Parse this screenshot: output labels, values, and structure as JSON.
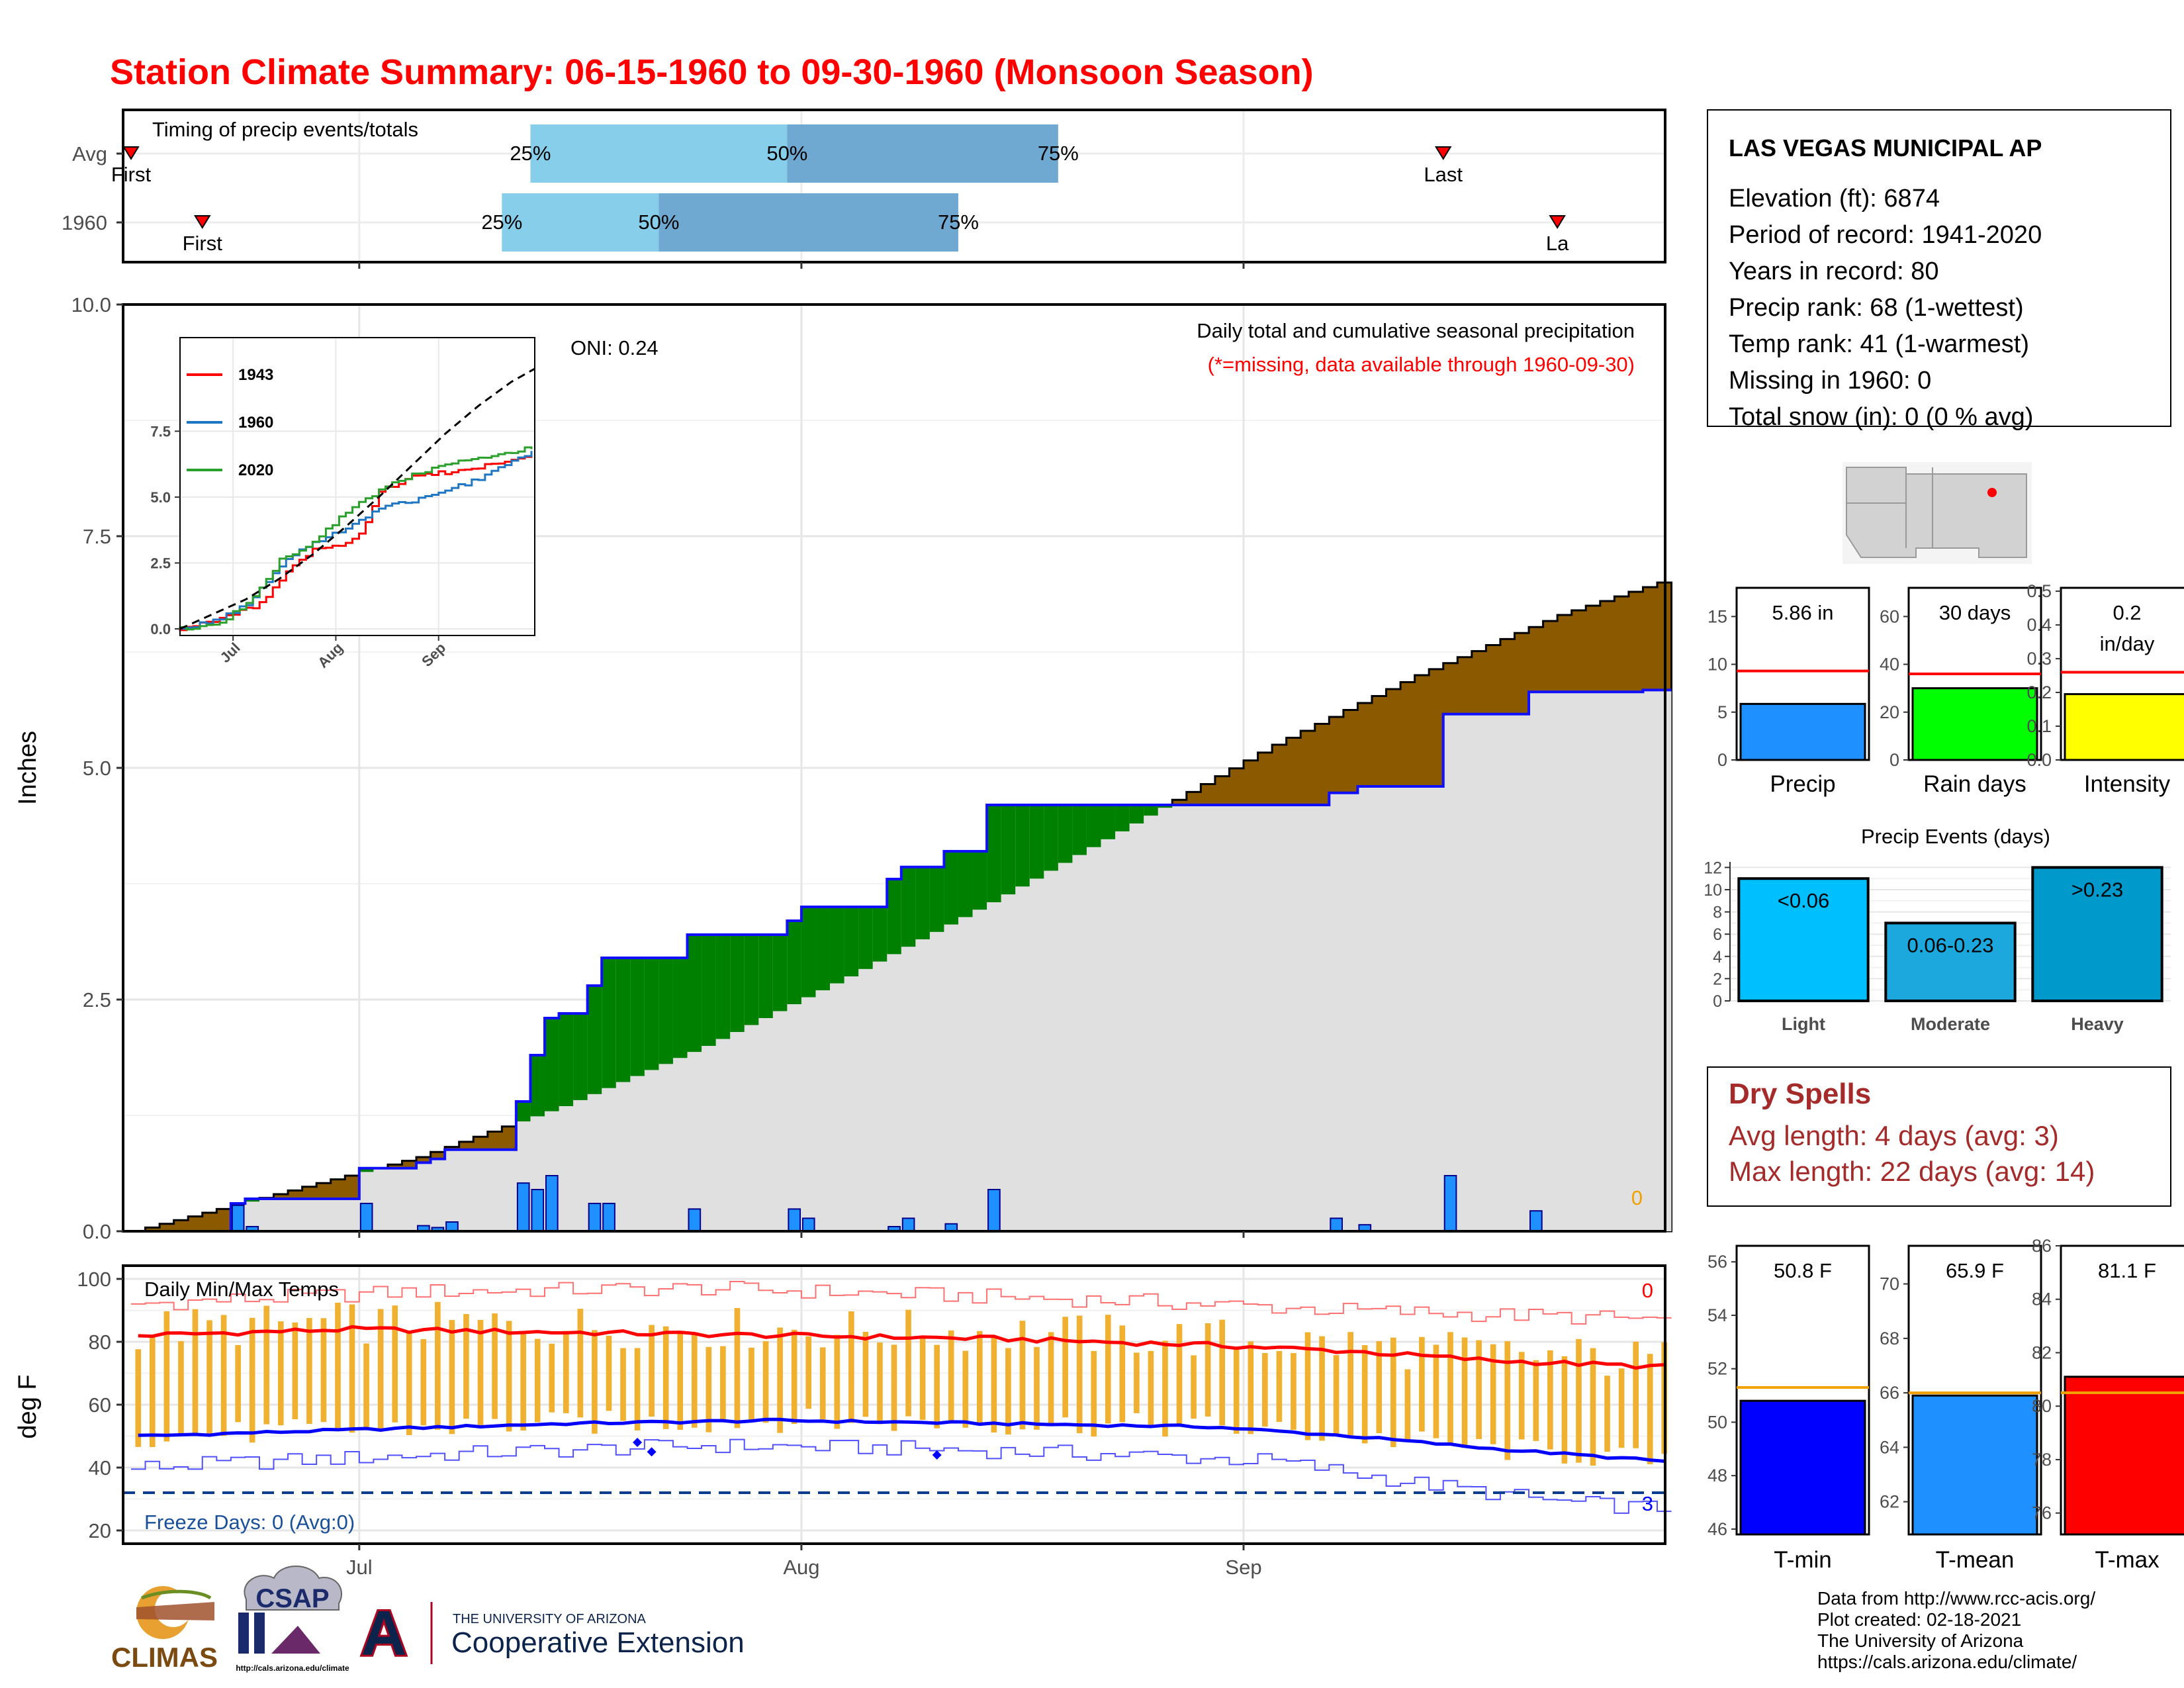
{
  "title": "Station Climate Summary: 06-15-1960 to 09-30-1960 (Monsoon Season)",
  "colors": {
    "title": "#ff0000",
    "brown": "#8b5a00",
    "green": "#008000",
    "blue_line": "#1010ff",
    "precip_bar": "#1e90ff",
    "light_fill": "#e0e0e0",
    "range_light": "#87ceeb",
    "range_dark": "#6fa8d0",
    "temp_bar": "#f0b030",
    "tmax_line": "#ff0000",
    "tmin_line": "#0000ff",
    "dry_spell_text": "#a52a2a"
  },
  "timing": {
    "label": "Timing of precip events/totals",
    "rows": [
      {
        "name": "Avg",
        "first_label": "First",
        "last_label": "Last",
        "p25_label": "25%",
        "p50_label": "50%",
        "p75_label": "75%",
        "first": 0,
        "p25": 28,
        "p50": 46,
        "p75": 65,
        "last": 92
      },
      {
        "name": "1960",
        "first_label": "First",
        "last_label": "La",
        "p25_label": "25%",
        "p50_label": "50%",
        "p75_label": "75%",
        "first": 5,
        "p25": 26,
        "p50": 37,
        "p75": 58,
        "last": 100
      }
    ]
  },
  "months": [
    "Jul",
    "Aug",
    "Sep"
  ],
  "month_days": [
    16,
    47,
    78
  ],
  "chart_data": [
    {
      "type": "area",
      "title": "Daily total and cumulative seasonal precipitation",
      "subtitle": "(*=missing, data available through 1960-09-30)",
      "annotation": "ONI: 0.24",
      "corner_count": "0",
      "ylabel": "Inches",
      "ylim": [
        0,
        10
      ],
      "yticks": [
        "0.0",
        "2.5",
        "5.0",
        "7.5",
        "10.0"
      ],
      "x": "day of season (0 = 06-15, 107 = 09-30)",
      "avg_cumulative_breakpoints": [
        [
          0,
          0.0
        ],
        [
          10,
          0.4
        ],
        [
          20,
          0.8
        ],
        [
          30,
          1.35
        ],
        [
          40,
          2.0
        ],
        [
          50,
          2.75
        ],
        [
          60,
          3.55
        ],
        [
          70,
          4.4
        ],
        [
          80,
          5.25
        ],
        [
          90,
          6.0
        ],
        [
          100,
          6.65
        ],
        [
          107,
          7.0
        ]
      ],
      "year_cumulative_steps": [
        [
          7,
          0.3
        ],
        [
          8,
          0.35
        ],
        [
          16,
          0.68
        ],
        [
          20,
          0.74
        ],
        [
          21,
          0.78
        ],
        [
          22,
          0.88
        ],
        [
          27,
          1.4
        ],
        [
          28,
          1.9
        ],
        [
          29,
          2.3
        ],
        [
          30,
          2.35
        ],
        [
          32,
          2.65
        ],
        [
          33,
          2.95
        ],
        [
          39,
          3.2
        ],
        [
          46,
          3.35
        ],
        [
          47,
          3.5
        ],
        [
          53,
          3.8
        ],
        [
          54,
          3.93
        ],
        [
          57,
          4.1
        ],
        [
          60,
          4.6
        ],
        [
          84,
          4.73
        ],
        [
          86,
          4.8
        ],
        [
          92,
          5.58
        ],
        [
          98,
          5.82
        ],
        [
          106,
          5.84
        ]
      ],
      "daily_precip": [
        [
          7,
          0.28
        ],
        [
          8,
          0.05
        ],
        [
          16,
          0.3
        ],
        [
          20,
          0.06
        ],
        [
          21,
          0.04
        ],
        [
          22,
          0.1
        ],
        [
          27,
          0.52
        ],
        [
          28,
          0.45
        ],
        [
          29,
          0.6
        ],
        [
          32,
          0.3
        ],
        [
          33,
          0.3
        ],
        [
          39,
          0.24
        ],
        [
          46,
          0.24
        ],
        [
          47,
          0.14
        ],
        [
          53,
          0.05
        ],
        [
          54,
          0.14
        ],
        [
          57,
          0.08
        ],
        [
          60,
          0.45
        ],
        [
          84,
          0.14
        ],
        [
          86,
          0.07
        ],
        [
          92,
          0.6
        ],
        [
          98,
          0.22
        ]
      ]
    },
    {
      "type": "line",
      "title": "Daily Min/Max Temps",
      "ylabel": "deg F",
      "ylim": [
        20,
        100
      ],
      "yticks": [
        "20",
        "40",
        "60",
        "80",
        "100"
      ],
      "freeze_label": "Freeze Days: 0 (Avg:0)",
      "freeze_line": 32,
      "count_top": "0",
      "count_bottom": "3",
      "avg_tmax_breakpoints": [
        [
          0,
          82
        ],
        [
          15,
          84
        ],
        [
          30,
          83
        ],
        [
          45,
          82
        ],
        [
          60,
          81
        ],
        [
          75,
          79
        ],
        [
          85,
          77
        ],
        [
          95,
          74
        ],
        [
          107,
          72
        ]
      ],
      "avg_tmin_breakpoints": [
        [
          0,
          50
        ],
        [
          15,
          52
        ],
        [
          30,
          54
        ],
        [
          45,
          55
        ],
        [
          60,
          54
        ],
        [
          75,
          53
        ],
        [
          85,
          50
        ],
        [
          95,
          46
        ],
        [
          107,
          42
        ]
      ],
      "rec_high_breakpoints": [
        [
          0,
          92
        ],
        [
          20,
          96
        ],
        [
          40,
          97
        ],
        [
          55,
          95
        ],
        [
          70,
          93
        ],
        [
          85,
          90
        ],
        [
          100,
          88
        ],
        [
          107,
          87
        ]
      ],
      "rec_low_breakpoints": [
        [
          0,
          40
        ],
        [
          20,
          44
        ],
        [
          40,
          47
        ],
        [
          55,
          46
        ],
        [
          70,
          44
        ],
        [
          80,
          42
        ],
        [
          90,
          35
        ],
        [
          100,
          29
        ],
        [
          107,
          27
        ]
      ],
      "below_avg_tmin_days": [
        [
          35,
          48
        ],
        [
          36,
          45
        ],
        [
          56,
          44
        ]
      ]
    },
    {
      "type": "bar",
      "name": "season totals",
      "panels": [
        {
          "category": "Precip",
          "value_label": "5.86 in",
          "value": 5.86,
          "avg": 9.3,
          "ylim": [
            0,
            18
          ],
          "yticks": [
            "0",
            "5",
            "10",
            "15"
          ],
          "tick_values": [
            0,
            5,
            10,
            15
          ],
          "color": "#1e90ff"
        },
        {
          "category": "Rain days",
          "value_label": "30 days",
          "value": 30,
          "avg": 36,
          "ylim": [
            0,
            72
          ],
          "yticks": [
            "0",
            "20",
            "40",
            "60"
          ],
          "tick_values": [
            0,
            20,
            40,
            60
          ],
          "color": "#00ff00"
        },
        {
          "category": "Intensity",
          "value_label_1": "0.2",
          "value_label_2": "in/day",
          "value": 0.195,
          "avg": 0.26,
          "ylim": [
            0,
            0.51
          ],
          "yticks": [
            "0.0",
            "0.1",
            "0.2",
            "0.3",
            "0.4",
            "0.5"
          ],
          "tick_values": [
            0,
            0.1,
            0.2,
            0.3,
            0.4,
            0.5
          ],
          "color": "#ffff00"
        }
      ]
    },
    {
      "type": "bar",
      "title": "Precip Events (days)",
      "categories": [
        "Light",
        "Moderate",
        "Heavy"
      ],
      "value_labels": [
        "<0.06",
        "0.06-0.23",
        ">0.23"
      ],
      "values": [
        11,
        7,
        12
      ],
      "colors": [
        "#00bfff",
        "#1ca8dd",
        "#0099cc"
      ],
      "ylim": [
        0,
        12.5
      ],
      "yticks": [
        "0",
        "2",
        "4",
        "6",
        "8",
        "10",
        "12"
      ]
    },
    {
      "type": "bar",
      "name": "season temperatures",
      "panels": [
        {
          "category": "T-min",
          "value_label": "50.8 F",
          "value": 50.8,
          "avg": 51.3,
          "ylim": [
            45.8,
            56.6
          ],
          "yticks": [
            "46",
            "48",
            "50",
            "52",
            "54",
            "56"
          ],
          "tick_values": [
            46,
            48,
            50,
            52,
            54,
            56
          ],
          "color": "#0000ff"
        },
        {
          "category": "T-mean",
          "value_label": "65.9 F",
          "value": 65.9,
          "avg": 66.0,
          "ylim": [
            60.8,
            71.4
          ],
          "yticks": [
            "62",
            "64",
            "66",
            "68",
            "70"
          ],
          "tick_values": [
            62,
            64,
            66,
            68,
            70
          ],
          "color": "#1e90ff"
        },
        {
          "category": "T-max",
          "value_label": "81.1 F",
          "value": 81.1,
          "avg": 80.5,
          "ylim": [
            75.2,
            86.0
          ],
          "yticks": [
            "76",
            "78",
            "80",
            "82",
            "84",
            "86"
          ],
          "tick_values": [
            76,
            78,
            80,
            82,
            84,
            86
          ],
          "color": "#ff0000"
        }
      ]
    }
  ],
  "station": {
    "name": "LAS VEGAS MUNICIPAL AP",
    "lines": [
      "Elevation (ft): 6874",
      "Period of record: 1941-2020",
      "Years in record: 80",
      "Precip rank: 68 (1-wettest)",
      "Temp rank: 41 (1-warmest)",
      "Missing in 1960: 0",
      "Total snow (in): 0 (0 % avg)"
    ]
  },
  "inset": {
    "legend": [
      "1943",
      "1960",
      "2020"
    ],
    "legend_colors": [
      "#ff0000",
      "#1f77c4",
      "#2ca02c"
    ],
    "yticks": [
      "0.0",
      "2.5",
      "5.0",
      "7.5"
    ],
    "xticks": [
      "Jul",
      "Aug",
      "Sep"
    ]
  },
  "dry_spells": {
    "title": "Dry Spells",
    "avg_length": "Avg length: 4 days (avg: 3)",
    "max_length": "Max length: 22 days (avg: 14)"
  },
  "footer": {
    "lines": [
      "Data from http://www.rcc-acis.org/",
      "Plot created: 02-18-2021",
      "The University of Arizona",
      "https://cals.arizona.edu/climate/"
    ]
  },
  "logos": {
    "climas": "CLIMAS",
    "csap": "CSAP",
    "csap_url": "http://cals.arizona.edu/climate",
    "ua_line1": "THE UNIVERSITY OF ARIZONA",
    "ua_line2": "Cooperative Extension",
    "ua_mark": "A"
  }
}
